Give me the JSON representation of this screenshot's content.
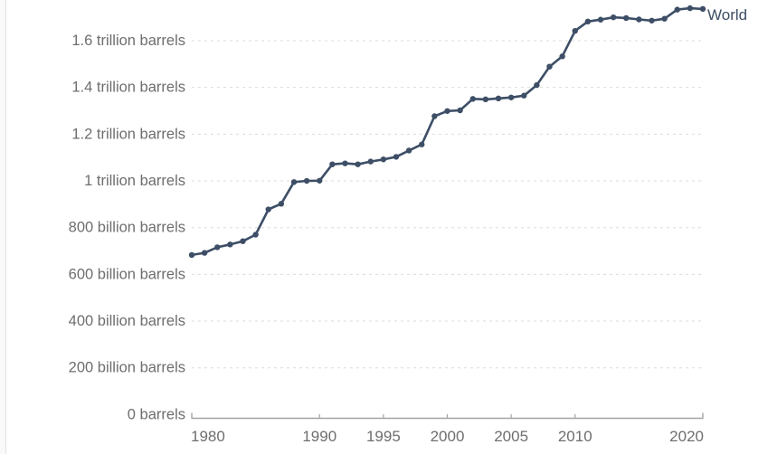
{
  "chart_data": {
    "type": "line",
    "xlabel": "",
    "ylabel": "",
    "xlim": [
      1980,
      2020
    ],
    "ylim": [
      0,
      1780
    ],
    "grid": "dashed horizontal gridlines",
    "legend_position": "inline right end-of-line label",
    "unit": "barrels",
    "series": [
      {
        "name": "World",
        "color": "#3d4e66",
        "x": [
          1980,
          1981,
          1982,
          1983,
          1984,
          1985,
          1986,
          1987,
          1988,
          1989,
          1990,
          1991,
          1992,
          1993,
          1994,
          1995,
          1996,
          1997,
          1998,
          1999,
          2000,
          2001,
          2002,
          2003,
          2004,
          2005,
          2006,
          2007,
          2008,
          2009,
          2010,
          2011,
          2012,
          2013,
          2014,
          2015,
          2016,
          2017,
          2018,
          2019,
          2020
        ],
        "values_billion_barrels": [
          683,
          692,
          716,
          728,
          742,
          770,
          878,
          902,
          995,
          1000,
          1001,
          1071,
          1075,
          1071,
          1083,
          1092,
          1103,
          1130,
          1156,
          1277,
          1299,
          1302,
          1351,
          1349,
          1353,
          1357,
          1365,
          1410,
          1489,
          1533,
          1642,
          1682,
          1690,
          1700,
          1697,
          1691,
          1686,
          1694,
          1733,
          1739,
          1736
        ]
      }
    ],
    "y_ticks": [
      {
        "value": 0,
        "label": "0 barrels"
      },
      {
        "value": 200,
        "label": "200 billion barrels"
      },
      {
        "value": 400,
        "label": "400 billion barrels"
      },
      {
        "value": 600,
        "label": "600 billion barrels"
      },
      {
        "value": 800,
        "label": "800 billion barrels"
      },
      {
        "value": 1000,
        "label": "1 trillion barrels"
      },
      {
        "value": 1200,
        "label": "1.2 trillion barrels"
      },
      {
        "value": 1400,
        "label": "1.4 trillion barrels"
      },
      {
        "value": 1600,
        "label": "1.6 trillion barrels"
      }
    ],
    "x_ticks": [
      {
        "year": 1980,
        "label": "1980",
        "anchor": "start"
      },
      {
        "year": 1990,
        "label": "1990",
        "anchor": "middle"
      },
      {
        "year": 1995,
        "label": "1995",
        "anchor": "middle"
      },
      {
        "year": 2000,
        "label": "2000",
        "anchor": "middle"
      },
      {
        "year": 2005,
        "label": "2005",
        "anchor": "middle"
      },
      {
        "year": 2010,
        "label": "2010",
        "anchor": "middle"
      },
      {
        "year": 2020,
        "label": "2020",
        "anchor": "end"
      }
    ]
  },
  "colors": {
    "line": "#3d4e66",
    "gridline": "#dcdcdc",
    "axis_line": "#a3a3a3",
    "tick_label": "#6e6e6e",
    "background": "#ffffff"
  }
}
